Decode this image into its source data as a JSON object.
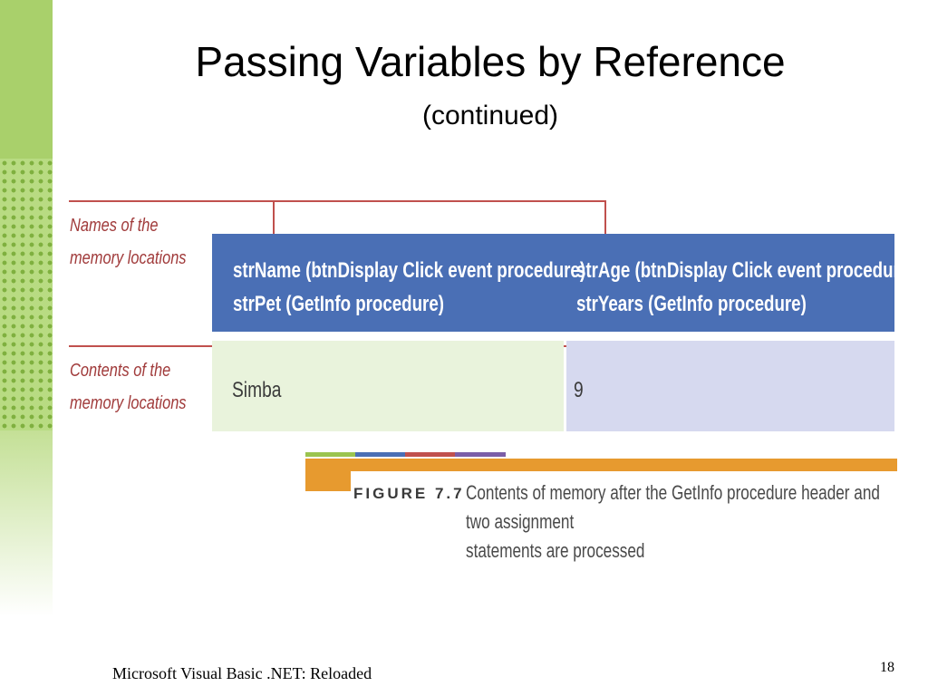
{
  "slide": {
    "title": "Passing Variables by Reference",
    "subtitle": "(continued)",
    "footer": "Microsoft Visual Basic .NET: Reloaded",
    "page_number": "18"
  },
  "figure": {
    "names_label_1": "Names of the",
    "names_label_2": "memory locations",
    "contents_label_1": "Contents of the",
    "contents_label_2": "memory locations",
    "left_name_1": "strName (btnDisplay Click event procedure)",
    "left_name_2": "strPet (GetInfo procedure)",
    "right_name_1": "strAge (btnDisplay Click event procedure)",
    "right_name_2": "strYears (GetInfo procedure)",
    "left_value": "Simba",
    "right_value": "9",
    "figure_number": "FIGURE 7.7",
    "caption_1": "Contents of memory after the GetInfo procedure header and two assignment",
    "caption_2": "statements are processed"
  },
  "colors": {
    "accent_green": "#a9d06b",
    "names_blue": "#4a6fb5",
    "label_red": "#a03a3a",
    "orange": "#e79a2f"
  }
}
